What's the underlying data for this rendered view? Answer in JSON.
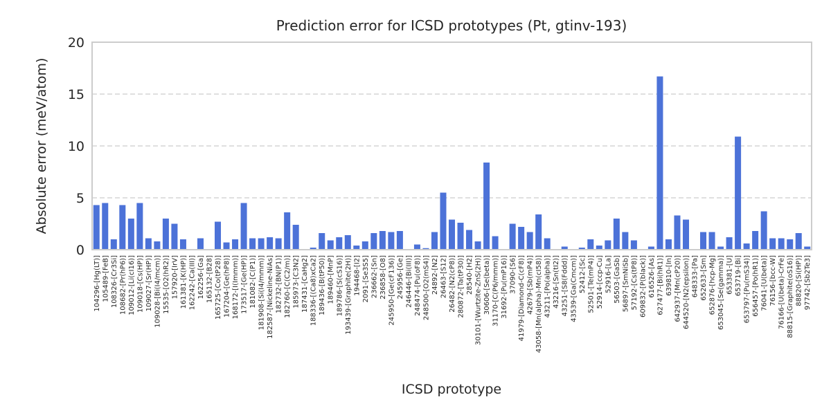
{
  "chart_data": {
    "type": "bar",
    "title": "Prediction error for ICSD prototypes (Pt, gtinv-193)",
    "xlabel": "ICSD prototype",
    "ylabel": "Absolute error (meV/atom)",
    "ylim": [
      0,
      20
    ],
    "yticks": [
      0,
      5,
      10,
      15,
      20
    ],
    "grid": "horizontal dashed",
    "bar_color": "#4c72d8",
    "categories": [
      "104296-[Hg(LT)]",
      "105489-[FeB]",
      "108326-[Cr3Si]",
      "108682-[Pr(hP6)]",
      "109012-[Li(cI16)]",
      "109018-[Cs(HP)]",
      "109027-[Sr(HP)]",
      "109028-[Bi(I4/mcm)]",
      "15535-[O2(hR2)]",
      "157920-[IrV]",
      "161381-[K(HP)]",
      "162242-[Ca(III)]",
      "162256-[Ga]",
      "165132-[B28]",
      "165725-[Co(tP28)]",
      "167204-[Ge(hP8)]",
      "168172-[I(Immm)]",
      "173517-[Ge(HP)]",
      "181082-[C(P1)]",
      "181908-[Si(I4/mmm)]",
      "182587-[Nickeline-NiAs]",
      "182732-[BN(P1)]",
      "182760-[C(C2/m)]",
      "185973-[C3N2]",
      "187431-[CaHg2]",
      "188336-[(Ca8)xCa2]",
      "189436-[B(tP50)]",
      "189460-[MnP]",
      "189786-[S(cS16)]",
      "193439-[Graphite(2H)]",
      "194468-[I2]",
      "2091-[Se3S5]",
      "236662-[Sn]",
      "236858-[O8]",
      "245950-[Ge(cF136)]",
      "245956-[Ge]",
      "246446-[Bi(III)]",
      "248474-[Pu(oF8)]",
      "248500-[O2(mS4)]",
      "24892-[N2]",
      "26463-[S12]",
      "26482-[N2(cP8)]",
      "280872-[Ta(tP30)]",
      "28540-[H2]",
      "30101-[Wurtzite-ZnS(2H)]",
      "30606-[Se(beta)]",
      "31170-[C(P6/mmm)]",
      "31692-[Pu(mP16)]",
      "37090-[S6]",
      "41979-[Diamond-C(cF8)]",
      "42679-[Sb(mP4)]",
      "43058-[Mn(alpha)-Mn(cI58)]",
      "43211-[Po(alpha)]",
      "43216-[Sn(tI2)]",
      "43251-[S8(Fddd)]",
      "43539-[Ga(Cmcm)]",
      "52412-[Sc]",
      "52501-[Te(mP4)]",
      "52914-[ccp-Cu]",
      "52916-[La]",
      "56503-[GaSb]",
      "56897-[SmNiSb]",
      "57192-[Cs(tP8)]",
      "609832-[P(black)]",
      "616526-[As]",
      "627477-[Bi(hR1)]",
      "639810-[In]",
      "642937-[Mn(cP20)]",
      "644520-[N2(epsilon)]",
      "648333-[Pa]",
      "652633-[Sm]",
      "652876-[hcp-Mg]",
      "653045-[Se(gamma)]",
      "653381-[U]",
      "653719-[Bi]",
      "653797-[Pu(mS34)]",
      "656457-[Po(hR1)]",
      "76041-[U(beta)]",
      "76156-[bcc-W]",
      "76166-[U(beta)-CrFe]",
      "88815-[Graphite(oS16)]",
      "88820-[Si(HP)]",
      "97742-[Sb2Te3]"
    ],
    "values": [
      4.3,
      4.5,
      1.0,
      4.3,
      3.0,
      4.5,
      1.1,
      0.8,
      3.0,
      2.5,
      1.0,
      0.0,
      1.1,
      0.0,
      2.7,
      0.7,
      1.0,
      4.5,
      1.1,
      1.1,
      1.2,
      1.1,
      3.6,
      2.4,
      0.0,
      0.2,
      1.6,
      0.9,
      1.2,
      1.4,
      0.4,
      0.8,
      1.6,
      1.8,
      1.7,
      1.8,
      0.05,
      0.5,
      0.15,
      1.7,
      5.5,
      2.9,
      2.6,
      1.9,
      0.8,
      8.4,
      1.3,
      0.0,
      2.5,
      2.2,
      1.7,
      3.4,
      1.1,
      0.0,
      0.3,
      0.05,
      0.2,
      1.0,
      0.4,
      0.9,
      3.0,
      1.7,
      0.9,
      0.0,
      0.3,
      16.7,
      1.0,
      3.3,
      2.9,
      0.0,
      1.7,
      1.7,
      0.3,
      1.2,
      10.9,
      0.6,
      1.8,
      3.7,
      1.1,
      1.1,
      1.0,
      1.6,
      0.3
    ]
  }
}
